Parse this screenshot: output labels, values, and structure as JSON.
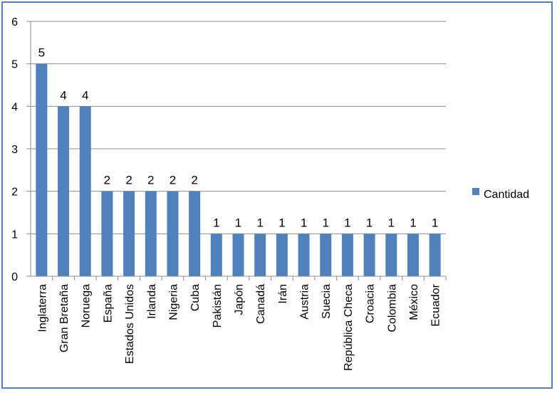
{
  "chart_data": {
    "type": "bar",
    "categories": [
      "Inglaterra",
      "Gran Bretaña",
      "Noruega",
      "España",
      "Estados Unidos",
      "Irlanda",
      "Nigeria",
      "Cuba",
      "Pakistán",
      "Japón",
      "Canadá",
      "Irán",
      "Austria",
      "Suecia",
      "República Checa",
      "Croacia",
      "Colombia",
      "México",
      "Ecuador"
    ],
    "series": [
      {
        "name": "Cantidad",
        "values": [
          5,
          4,
          4,
          2,
          2,
          2,
          2,
          2,
          1,
          1,
          1,
          1,
          1,
          1,
          1,
          1,
          1,
          1,
          1
        ]
      }
    ],
    "ylim": [
      0,
      6
    ],
    "yticks": [
      0,
      1,
      2,
      3,
      4,
      5,
      6
    ],
    "grid": true,
    "legend_position": "right",
    "data_labels": true,
    "bar_color": "#4f81bd"
  }
}
